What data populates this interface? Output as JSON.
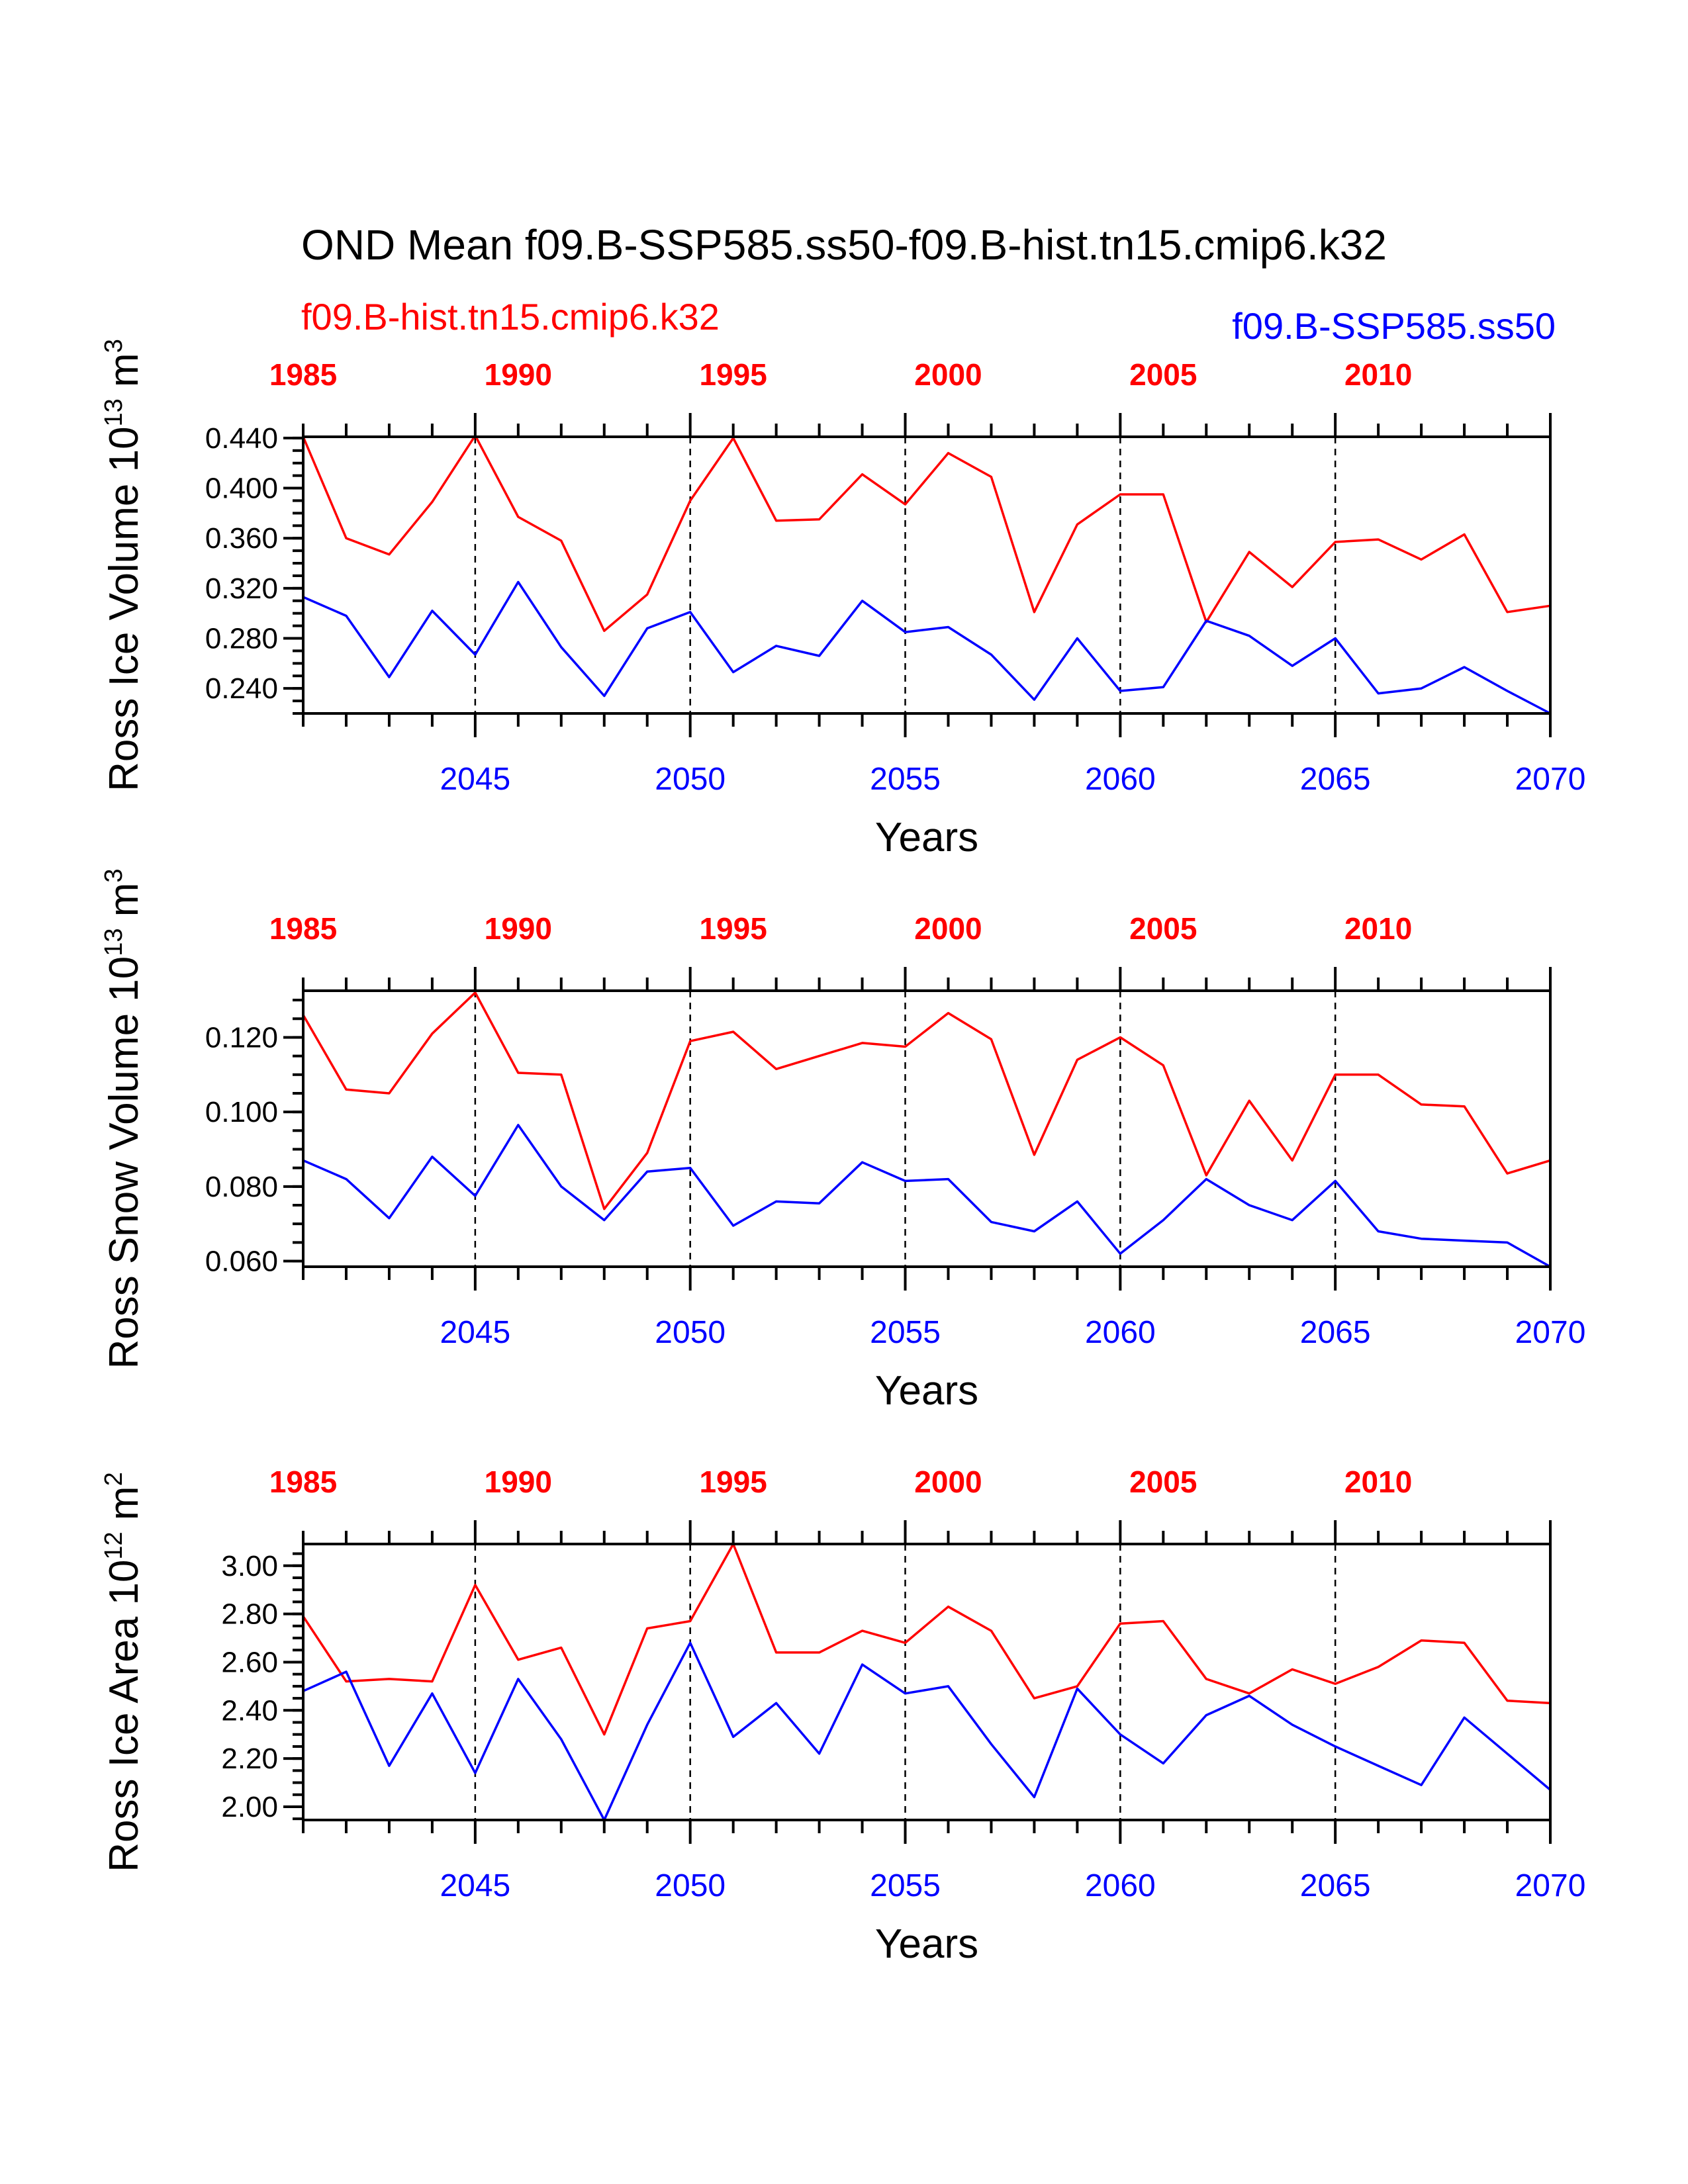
{
  "title": "OND Mean f09.B-SSP585.ss50-f09.B-hist.tn15.cmip6.k32",
  "legend": {
    "hist": "f09.B-hist.tn15.cmip6.k32",
    "ssp": "f09.B-SSP585.ss50"
  },
  "colors": {
    "hist": "#ff0000",
    "ssp": "#0000ff",
    "axis": "#000000"
  },
  "chart_data": [
    {
      "type": "line",
      "title": "",
      "xlabel": "Years",
      "ylabel": "Ross Ice Volume 10^13 m^3",
      "ylabel_main": "Ross Ice Volume 10",
      "ylabel_exp": "13",
      "ylabel_unit": " m",
      "ylabel_unit_exp": "3",
      "x_bottom": [
        2041,
        2042,
        2043,
        2044,
        2045,
        2046,
        2047,
        2048,
        2049,
        2050,
        2051,
        2052,
        2053,
        2054,
        2055,
        2056,
        2057,
        2058,
        2059,
        2060,
        2061,
        2062,
        2063,
        2064,
        2065,
        2066,
        2067,
        2068,
        2069,
        2070
      ],
      "x_top": [
        1985,
        1986,
        1987,
        1988,
        1989,
        1990,
        1991,
        1992,
        1993,
        1994,
        1995,
        1996,
        1997,
        1998,
        1999,
        2000,
        2001,
        2002,
        2003,
        2004,
        2005,
        2006,
        2007,
        2008,
        2009,
        2010,
        2011,
        2012,
        2013,
        2014
      ],
      "xlim": [
        2041,
        2070
      ],
      "ylim": [
        0.22,
        0.441
      ],
      "yticks": [
        0.24,
        0.28,
        0.32,
        0.36,
        0.4,
        0.44
      ],
      "ytick_labels": [
        "0.240",
        "0.280",
        "0.320",
        "0.360",
        "0.400",
        "0.440"
      ],
      "grid": false,
      "series": [
        {
          "name": "f09.B-hist.tn15.cmip6.k32",
          "axis": "top",
          "values": [
            0.441,
            0.36,
            0.347,
            0.389,
            0.442,
            0.377,
            0.358,
            0.286,
            0.315,
            0.39,
            0.44,
            0.374,
            0.375,
            0.411,
            0.387,
            0.428,
            0.409,
            0.301,
            0.371,
            0.395,
            0.395,
            0.293,
            0.349,
            0.321,
            0.357,
            0.359,
            0.343,
            0.363,
            0.301,
            0.306
          ]
        },
        {
          "name": "f09.B-SSP585.ss50",
          "axis": "bottom",
          "values": [
            0.313,
            0.298,
            0.249,
            0.302,
            0.267,
            0.325,
            0.273,
            0.234,
            0.288,
            0.301,
            0.253,
            0.274,
            0.266,
            0.31,
            0.285,
            0.289,
            0.267,
            0.231,
            0.28,
            0.238,
            0.241,
            0.294,
            0.282,
            0.258,
            0.28,
            0.236,
            0.24,
            0.257,
            0.238,
            0.22
          ]
        }
      ]
    },
    {
      "type": "line",
      "title": "",
      "xlabel": "Years",
      "ylabel": "Ross Snow Volume 10^13 m^3",
      "ylabel_main": "Ross Snow Volume 10",
      "ylabel_exp": "13",
      "ylabel_unit": " m",
      "ylabel_unit_exp": "3",
      "x_bottom": [
        2041,
        2042,
        2043,
        2044,
        2045,
        2046,
        2047,
        2048,
        2049,
        2050,
        2051,
        2052,
        2053,
        2054,
        2055,
        2056,
        2057,
        2058,
        2059,
        2060,
        2061,
        2062,
        2063,
        2064,
        2065,
        2066,
        2067,
        2068,
        2069,
        2070
      ],
      "x_top": [
        1985,
        1986,
        1987,
        1988,
        1989,
        1990,
        1991,
        1992,
        1993,
        1994,
        1995,
        1996,
        1997,
        1998,
        1999,
        2000,
        2001,
        2002,
        2003,
        2004,
        2005,
        2006,
        2007,
        2008,
        2009,
        2010,
        2011,
        2012,
        2013,
        2014
      ],
      "xlim": [
        2041,
        2070
      ],
      "ylim": [
        0.0585,
        0.1325
      ],
      "yticks": [
        0.06,
        0.08,
        0.1,
        0.12
      ],
      "ytick_labels": [
        "0.060",
        "0.080",
        "0.100",
        "0.120"
      ],
      "grid": false,
      "series": [
        {
          "name": "f09.B-hist.tn15.cmip6.k32",
          "axis": "top",
          "values": [
            0.126,
            0.106,
            0.105,
            0.121,
            0.132,
            0.1105,
            0.11,
            0.074,
            0.089,
            0.119,
            0.1215,
            0.1115,
            0.115,
            0.1185,
            0.1175,
            0.1265,
            0.1195,
            0.0885,
            0.114,
            0.12,
            0.1125,
            0.083,
            0.103,
            0.087,
            0.11,
            0.11,
            0.102,
            0.1015,
            0.0835,
            0.087
          ]
        },
        {
          "name": "f09.B-SSP585.ss50",
          "axis": "bottom",
          "values": [
            0.087,
            0.082,
            0.0715,
            0.088,
            0.0775,
            0.0965,
            0.08,
            0.071,
            0.084,
            0.085,
            0.0695,
            0.076,
            0.0755,
            0.0865,
            0.0815,
            0.082,
            0.0705,
            0.068,
            0.076,
            0.062,
            0.071,
            0.082,
            0.075,
            0.071,
            0.0815,
            0.068,
            0.066,
            0.0655,
            0.065,
            0.0585
          ]
        }
      ]
    },
    {
      "type": "line",
      "title": "",
      "xlabel": "Years",
      "ylabel": "Ross Ice Area 10^12 m^2",
      "ylabel_main": "Ross Ice Area 10",
      "ylabel_exp": "12",
      "ylabel_unit": " m",
      "ylabel_unit_exp": "2",
      "x_bottom": [
        2041,
        2042,
        2043,
        2044,
        2045,
        2046,
        2047,
        2048,
        2049,
        2050,
        2051,
        2052,
        2053,
        2054,
        2055,
        2056,
        2057,
        2058,
        2059,
        2060,
        2061,
        2062,
        2063,
        2064,
        2065,
        2066,
        2067,
        2068,
        2069,
        2070
      ],
      "x_top": [
        1985,
        1986,
        1987,
        1988,
        1989,
        1990,
        1991,
        1992,
        1993,
        1994,
        1995,
        1996,
        1997,
        1998,
        1999,
        2000,
        2001,
        2002,
        2003,
        2004,
        2005,
        2006,
        2007,
        2008,
        2009,
        2010,
        2011,
        2012,
        2013,
        2014
      ],
      "xlim": [
        2041,
        2070
      ],
      "ylim": [
        1.945,
        3.09
      ],
      "yticks": [
        2.0,
        2.2,
        2.4,
        2.6,
        2.8,
        3.0
      ],
      "ytick_labels": [
        "2.00",
        "2.20",
        "2.40",
        "2.60",
        "2.80",
        "3.00"
      ],
      "grid": false,
      "series": [
        {
          "name": "f09.B-hist.tn15.cmip6.k32",
          "axis": "top",
          "values": [
            2.79,
            2.52,
            2.53,
            2.52,
            2.92,
            2.61,
            2.66,
            2.3,
            2.74,
            2.77,
            3.09,
            2.64,
            2.64,
            2.73,
            2.68,
            2.83,
            2.73,
            2.45,
            2.5,
            2.76,
            2.77,
            2.53,
            2.47,
            2.57,
            2.51,
            2.58,
            2.69,
            2.68,
            2.44,
            2.43
          ]
        },
        {
          "name": "f09.B-SSP585.ss50",
          "axis": "bottom",
          "values": [
            2.48,
            2.56,
            2.17,
            2.47,
            2.14,
            2.53,
            2.28,
            1.945,
            2.34,
            2.68,
            2.29,
            2.43,
            2.22,
            2.59,
            2.47,
            2.5,
            2.26,
            2.04,
            2.49,
            2.3,
            2.18,
            2.38,
            2.46,
            2.34,
            2.25,
            2.17,
            2.09,
            2.37,
            2.22,
            2.07
          ]
        }
      ]
    }
  ],
  "top_axis_labels": [
    "1985",
    "1990",
    "1995",
    "2000",
    "2005",
    "2010"
  ],
  "bottom_axis_labels": [
    "2045",
    "2050",
    "2055",
    "2060",
    "2065",
    "2070"
  ]
}
